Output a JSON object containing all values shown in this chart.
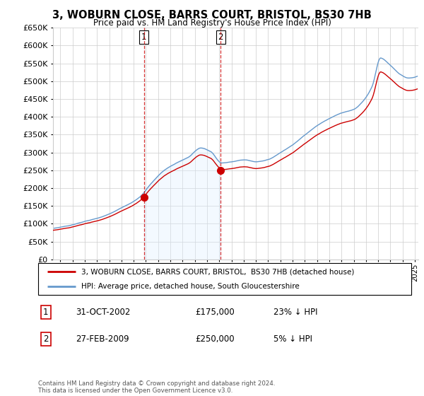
{
  "title": "3, WOBURN CLOSE, BARRS COURT, BRISTOL, BS30 7HB",
  "subtitle": "Price paid vs. HM Land Registry's House Price Index (HPI)",
  "legend_line1": "3, WOBURN CLOSE, BARRS COURT, BRISTOL,  BS30 7HB (detached house)",
  "legend_line2": "HPI: Average price, detached house, South Gloucestershire",
  "footnote": "Contains HM Land Registry data © Crown copyright and database right 2024.\nThis data is licensed under the Open Government Licence v3.0.",
  "sale1_date_str": "31-OCT-2002",
  "sale1_price_str": "£175,000",
  "sale1_hpi_str": "23% ↓ HPI",
  "sale2_date_str": "27-FEB-2009",
  "sale2_price_str": "£250,000",
  "sale2_hpi_str": "5% ↓ HPI",
  "ylim": [
    0,
    650000
  ],
  "yticks": [
    0,
    50000,
    100000,
    150000,
    200000,
    250000,
    300000,
    350000,
    400000,
    450000,
    500000,
    550000,
    600000,
    650000
  ],
  "line_color_red": "#cc0000",
  "line_color_blue": "#6699cc",
  "fill_color_blue": "#ddeeff",
  "marker_color": "#cc0000",
  "grid_color": "#cccccc",
  "background_color": "#ffffff",
  "sale1_x": 2002.83,
  "sale2_x": 2009.12,
  "sale1_y": 175000,
  "sale2_y": 250000,
  "xlim_left": 1995.4,
  "xlim_right": 2025.3
}
